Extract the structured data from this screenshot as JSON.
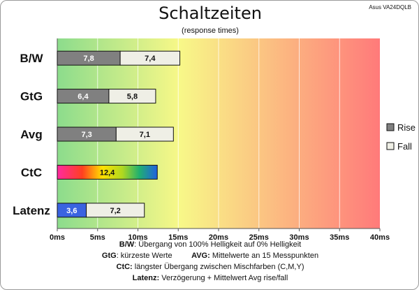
{
  "header": {
    "title": "Schaltzeiten",
    "subtitle": "(response times)",
    "monitor": "Asus VA24DQLB"
  },
  "chart_data": {
    "type": "bar",
    "orientation": "horizontal",
    "stacked": true,
    "categories": [
      "B/W",
      "GtG",
      "Avg",
      "CtC",
      "Latenz"
    ],
    "series": [
      {
        "name": "Rise",
        "values": [
          7.8,
          6.4,
          7.3,
          null,
          3.6
        ],
        "value_labels": [
          "7,8",
          "6,4",
          "7,3",
          "",
          "3,6"
        ]
      },
      {
        "name": "Fall",
        "values": [
          7.4,
          5.8,
          7.1,
          null,
          7.2
        ],
        "value_labels": [
          "7,4",
          "5,8",
          "7,1",
          "",
          "7,2"
        ]
      }
    ],
    "special": {
      "category": "CtC",
      "value": 12.4,
      "label": "12,4",
      "fill": "rainbow"
    },
    "latency_rise_color": "#3a63e0",
    "rise_color": "#808080",
    "fall_color": "#efefe6",
    "xlim": [
      0,
      40
    ],
    "xticks": [
      "0ms",
      "5ms",
      "10ms",
      "15ms",
      "20ms",
      "25ms",
      "30ms",
      "35ms",
      "40ms"
    ],
    "background_gradient": [
      "#8cdc8c",
      "#f8f888",
      "#ff7a7a"
    ],
    "legend": {
      "position": "right",
      "items": [
        "Rise",
        "Fall"
      ]
    },
    "grid": true
  },
  "notes": {
    "line1_key": "B/W",
    "line1_text": ":  Übergang von 100% Helligkeit auf 0% Helligkeit",
    "line2_key_a": "GtG",
    "line2_text_a": ": kürzeste  Werte",
    "line2_key_b": "AVG:",
    "line2_text_b": " Mittelwerte  an 15 Messpunkten",
    "line3_key": "CtC:",
    "line3_text": " längster Übergang  zwischen Mischfarben (C,M,Y)",
    "line4_key": "Latenz:",
    "line4_text": " Verzögerung  + Mittelwert  Avg rise/fall"
  }
}
